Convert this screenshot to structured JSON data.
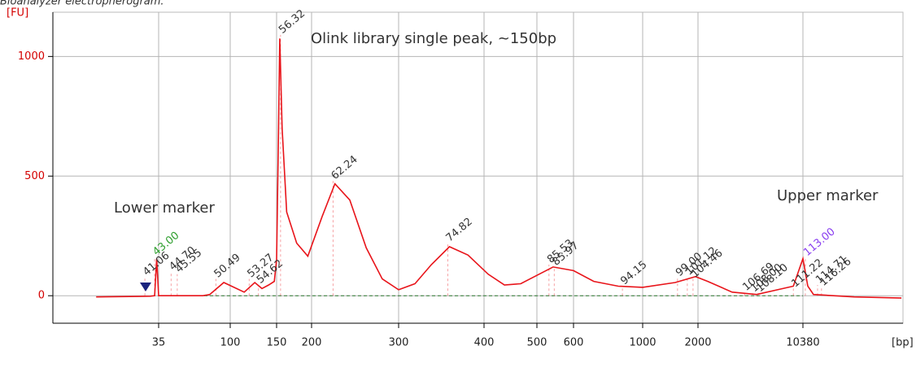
{
  "chart_data": {
    "type": "line",
    "caption": "Bioanalyzer electropherogram.",
    "y_axis_label": "[FU]",
    "x_axis_label": "[bp]",
    "annotations": [
      "Olink library single peak, ~150bp",
      "Lower marker",
      "Upper marker"
    ],
    "x": [
      14,
      26,
      31,
      33,
      34,
      35,
      67,
      74,
      91,
      113,
      124,
      132,
      140,
      147,
      150,
      152,
      154,
      157,
      163,
      177,
      194,
      210,
      223,
      239,
      258,
      278,
      300,
      317,
      335,
      356,
      379,
      407,
      436,
      467,
      500,
      542,
      600,
      697,
      835,
      1000,
      1503,
      1940,
      2332,
      3420,
      5020,
      8930,
      10380,
      11200,
      12250,
      23200,
      48700
    ],
    "series": [
      {
        "color": "#e8141a",
        "values": [
          -5,
          -3,
          -2,
          0,
          155,
          0,
          0,
          5,
          55,
          15,
          55,
          30,
          45,
          60,
          150,
          600,
          1075,
          700,
          350,
          220,
          165,
          330,
          468,
          400,
          200,
          70,
          25,
          50,
          130,
          205,
          170,
          90,
          45,
          50,
          85,
          120,
          105,
          60,
          40,
          35,
          55,
          80,
          60,
          15,
          5,
          40,
          155,
          40,
          5,
          -5,
          -10
        ]
      }
    ],
    "xticks": [
      35,
      100,
      150,
      200,
      300,
      400,
      500,
      600,
      1000,
      2000,
      10380
    ],
    "ylim": [
      -115,
      1185
    ],
    "yticks": [
      0,
      500,
      1000
    ],
    "grid": true,
    "peaks": [
      {
        "label": "41.06",
        "x": 28.6,
        "y": 78,
        "color": "#333333"
      },
      {
        "label": "43.00",
        "x": 33,
        "y": 162,
        "color": "#2e9e2e"
      },
      {
        "label": "44.70",
        "x": 42,
        "y": 100,
        "color": "#333333"
      },
      {
        "label": "45.55",
        "x": 46,
        "y": 90,
        "color": "#333333"
      },
      {
        "label": "50.49",
        "x": 81,
        "y": 70,
        "color": "#333333"
      },
      {
        "label": "53.27",
        "x": 118,
        "y": 70,
        "color": "#333333"
      },
      {
        "label": "54.62",
        "x": 128,
        "y": 45,
        "color": "#333333"
      },
      {
        "label": "56.32",
        "x": 155,
        "y": 1090,
        "color": "#333333"
      },
      {
        "label": "62.24",
        "x": 221,
        "y": 480,
        "color": "#333333"
      },
      {
        "label": "74.82",
        "x": 354,
        "y": 220,
        "color": "#333333"
      },
      {
        "label": "85.53",
        "x": 531,
        "y": 130,
        "color": "#333333"
      },
      {
        "label": "85.97",
        "x": 545,
        "y": 120,
        "color": "#333333"
      },
      {
        "label": "94.15",
        "x": 861,
        "y": 40,
        "color": "#333333"
      },
      {
        "label": "99.00",
        "x": 1548,
        "y": 75,
        "color": "#333333"
      },
      {
        "label": "101.12",
        "x": 1750,
        "y": 80,
        "color": "#333333"
      },
      {
        "label": "104.46",
        "x": 1880,
        "y": 70,
        "color": "#333333"
      },
      {
        "label": "106.69",
        "x": 4150,
        "y": 15,
        "color": "#333333"
      },
      {
        "label": "108.00",
        "x": 4710,
        "y": 10,
        "color": "#333333"
      },
      {
        "label": "108.10",
        "x": 5150,
        "y": 10,
        "color": "#333333"
      },
      {
        "label": "111.22",
        "x": 8930,
        "y": 30,
        "color": "#333333"
      },
      {
        "label": "113.00",
        "x": 10780,
        "y": 160,
        "color": "#8a3ff0"
      },
      {
        "label": "114.71",
        "x": 13060,
        "y": 45,
        "color": "#333333"
      },
      {
        "label": "116.26",
        "x": 13900,
        "y": 35,
        "color": "#333333"
      }
    ]
  }
}
